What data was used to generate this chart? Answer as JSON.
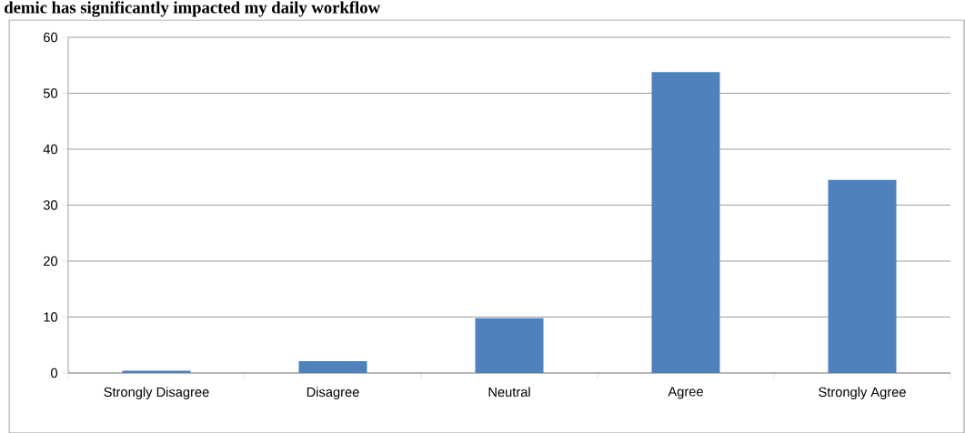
{
  "chart_data": {
    "type": "bar",
    "title": "demic has significantly impacted my daily workflow",
    "categories": [
      "Strongly Disagree",
      "Disagree",
      "Neutral",
      "Agree",
      "Strongly Agree"
    ],
    "values": [
      0.4,
      2.1,
      9.8,
      53.8,
      34.5
    ],
    "color": "#4f81bd",
    "ylim": [
      0,
      60
    ],
    "yticks": [
      0,
      10,
      20,
      30,
      40,
      50,
      60
    ],
    "grid": "y"
  }
}
